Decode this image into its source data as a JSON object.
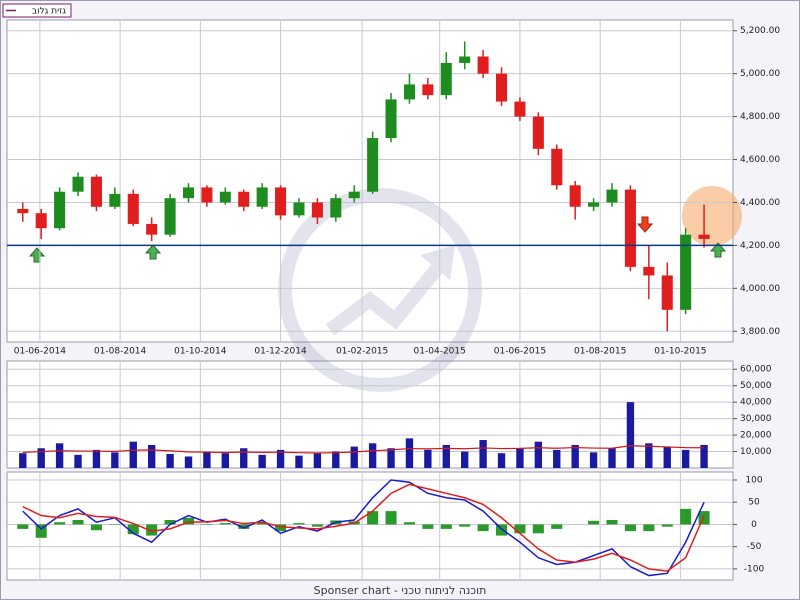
{
  "chart_data": [
    {
      "type": "candlestick",
      "name": "גזית גלוב",
      "name_color": "#7a1e6e",
      "x": [
        "2014-05-19",
        "2014-06-02",
        "2014-06-16",
        "2014-06-30",
        "2014-07-14",
        "2014-07-28",
        "2014-08-11",
        "2014-08-25",
        "2014-09-08",
        "2014-09-22",
        "2014-10-06",
        "2014-10-20",
        "2014-11-03",
        "2014-11-17",
        "2014-12-01",
        "2014-12-15",
        "2014-12-29",
        "2015-01-12",
        "2015-01-26",
        "2015-02-09",
        "2015-02-23",
        "2015-03-09",
        "2015-03-23",
        "2015-04-06",
        "2015-04-20",
        "2015-05-04",
        "2015-05-18",
        "2015-06-01",
        "2015-06-15",
        "2015-06-29",
        "2015-07-13",
        "2015-07-27",
        "2015-08-10",
        "2015-08-24",
        "2015-09-07",
        "2015-09-21",
        "2015-10-05",
        "2015-10-19"
      ],
      "open": [
        4370,
        4350,
        4280,
        4450,
        4520,
        4380,
        4440,
        4300,
        4250,
        4420,
        4470,
        4400,
        4450,
        4380,
        4470,
        4340,
        4400,
        4330,
        4420,
        4450,
        4700,
        4880,
        4950,
        4900,
        5050,
        5080,
        5000,
        4870,
        4800,
        4650,
        4480,
        4380,
        4400,
        4460,
        4100,
        4060,
        3900,
        4250
      ],
      "high": [
        4400,
        4370,
        4470,
        4540,
        4530,
        4470,
        4460,
        4330,
        4440,
        4490,
        4480,
        4470,
        4460,
        4490,
        4480,
        4420,
        4420,
        4440,
        4480,
        4730,
        4910,
        5000,
        4980,
        5100,
        5150,
        5110,
        5030,
        4890,
        4820,
        4670,
        4500,
        4420,
        4490,
        4480,
        4200,
        4120,
        4280,
        4390
      ],
      "low": [
        4310,
        4230,
        4270,
        4430,
        4360,
        4370,
        4290,
        4220,
        4240,
        4400,
        4380,
        4390,
        4360,
        4370,
        4320,
        4330,
        4300,
        4310,
        4400,
        4440,
        4680,
        4860,
        4880,
        4880,
        5020,
        4980,
        4850,
        4780,
        4620,
        4460,
        4320,
        4360,
        4380,
        4080,
        3950,
        3800,
        3880,
        4190
      ],
      "close": [
        4350,
        4280,
        4450,
        4520,
        4380,
        4440,
        4300,
        4250,
        4420,
        4470,
        4400,
        4450,
        4380,
        4470,
        4340,
        4400,
        4330,
        4420,
        4450,
        4700,
        4880,
        4950,
        4900,
        5050,
        5080,
        5000,
        4870,
        4800,
        4650,
        4480,
        4380,
        4400,
        4460,
        4100,
        4060,
        3900,
        4250,
        4230
      ],
      "up_color": "#1e8c1e",
      "down_color": "#e01e1e",
      "hline": 4200,
      "hline_color": "#0a3a8a",
      "xlim": [
        "2014-05-07",
        "2015-11-10"
      ],
      "xticks": [
        {
          "value": "2014-06-01",
          "label": "01-06-2014"
        },
        {
          "value": "2014-08-01",
          "label": "01-08-2014"
        },
        {
          "value": "2014-10-01",
          "label": "01-10-2014"
        },
        {
          "value": "2014-12-01",
          "label": "01-12-2014"
        },
        {
          "value": "2015-02-01",
          "label": "01-02-2015"
        },
        {
          "value": "2015-04-01",
          "label": "01-04-2015"
        },
        {
          "value": "2015-06-01",
          "label": "01-06-2015"
        },
        {
          "value": "2015-08-01",
          "label": "01-08-2015"
        },
        {
          "value": "2015-10-01",
          "label": "01-10-2015"
        }
      ],
      "ylim": [
        3750,
        5250
      ],
      "yticks": [
        {
          "value": 3800,
          "label": "3,800.00"
        },
        {
          "value": 4000,
          "label": "4,000.00"
        },
        {
          "value": 4200,
          "label": "4,200.00"
        },
        {
          "value": 4400,
          "label": "4,400.00"
        },
        {
          "value": 4600,
          "label": "4,600.00"
        },
        {
          "value": 4800,
          "label": "4,800.00"
        },
        {
          "value": 5000,
          "label": "5,000.00"
        },
        {
          "value": 5200,
          "label": "5,200.00"
        }
      ]
    },
    {
      "type": "bar",
      "color": "#1a1aa0",
      "values": [
        9000,
        12000,
        15000,
        8000,
        11000,
        9500,
        16000,
        14000,
        8500,
        7000,
        10000,
        9000,
        12000,
        8000,
        11000,
        7500,
        9000,
        10000,
        13000,
        15000,
        12000,
        18000,
        11000,
        14000,
        10000,
        17000,
        9000,
        12000,
        16000,
        11000,
        14000,
        9500,
        12000,
        40000,
        15000,
        13000,
        11000,
        14000
      ],
      "moving_average": [
        9500,
        10000,
        10500,
        10300,
        10200,
        10100,
        10800,
        11000,
        10400,
        9800,
        9600,
        9400,
        9700,
        9500,
        9600,
        9300,
        9100,
        9300,
        9700,
        10500,
        11000,
        11800,
        11600,
        11900,
        11700,
        12200,
        11800,
        11900,
        12300,
        12000,
        12400,
        12100,
        12000,
        13500,
        13200,
        12800,
        12400,
        12300
      ],
      "moving_average_color": "#d01818",
      "ylim": [
        0,
        65000
      ],
      "yticks": [
        {
          "value": 10000,
          "label": "10,000"
        },
        {
          "value": 20000,
          "label": "20,000"
        },
        {
          "value": 30000,
          "label": "30,000"
        },
        {
          "value": 40000,
          "label": "40,000"
        },
        {
          "value": 50000,
          "label": "50,000"
        },
        {
          "value": 60000,
          "label": "60,000"
        }
      ]
    },
    {
      "type": "macd",
      "lines": [
        {
          "color": "#1a1ad0",
          "values": [
            30,
            -10,
            20,
            35,
            5,
            15,
            -20,
            -40,
            0,
            20,
            5,
            12,
            -8,
            10,
            -20,
            -5,
            -15,
            5,
            10,
            60,
            100,
            95,
            70,
            60,
            55,
            30,
            -10,
            -40,
            -75,
            -90,
            -85,
            -70,
            -55,
            -95,
            -115,
            -110,
            -40,
            50
          ]
        },
        {
          "color": "#e01e1e",
          "values": [
            40,
            20,
            15,
            25,
            18,
            16,
            2,
            -15,
            -10,
            5,
            6,
            9,
            2,
            5,
            -5,
            -8,
            -10,
            -4,
            3,
            30,
            70,
            90,
            80,
            70,
            60,
            45,
            15,
            -20,
            -55,
            -80,
            -85,
            -78,
            -65,
            -80,
            -100,
            -105,
            -75,
            20
          ]
        }
      ],
      "histogram": {
        "color": "#2a9a2a",
        "values": [
          -10,
          -30,
          5,
          10,
          -13,
          -1,
          -22,
          -25,
          10,
          15,
          -1,
          3,
          -10,
          5,
          -15,
          3,
          -5,
          9,
          7,
          30,
          30,
          5,
          -10,
          -10,
          -5,
          -15,
          -25,
          -20,
          -20,
          -10,
          0,
          8,
          10,
          -15,
          -15,
          -5,
          35,
          30
        ]
      },
      "ylim": [
        -125,
        118
      ],
      "yticks": [
        100,
        50,
        0,
        -50,
        -100
      ]
    }
  ],
  "footer": "Sponser chart - תוכנה לניתוח טכני"
}
